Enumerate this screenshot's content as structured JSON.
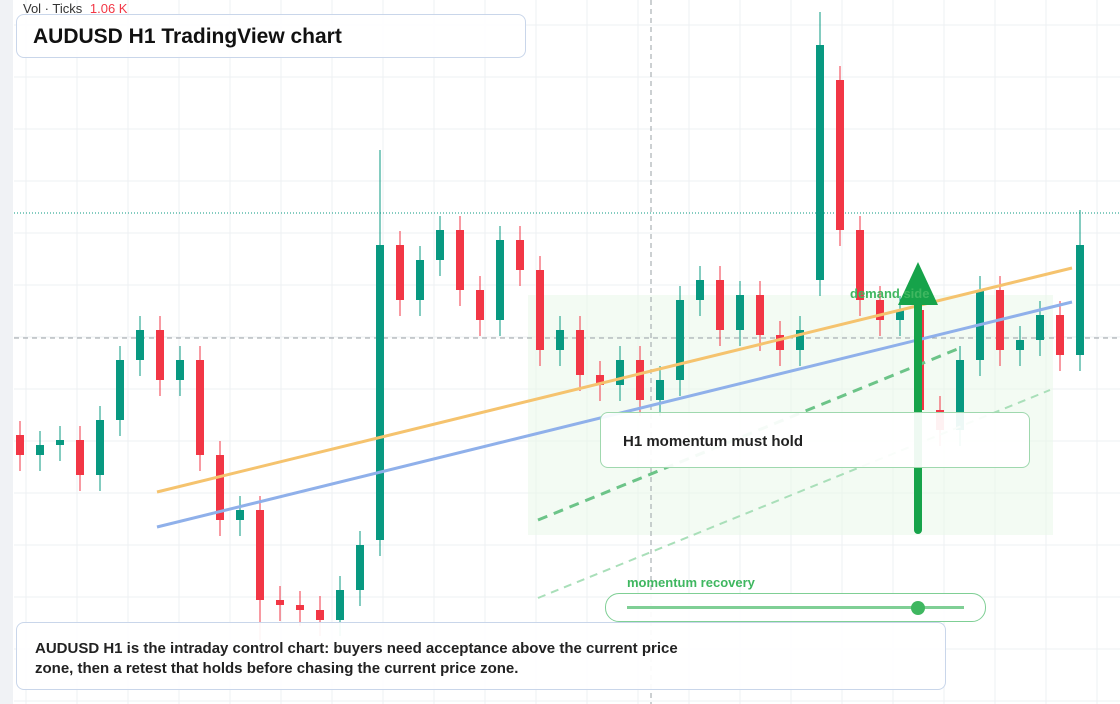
{
  "chart_data": {
    "type": "candlestick",
    "title": "AUDUSD H1 TradingView chart",
    "volume_label": "Vol · Ticks",
    "volume_value": "1.06 K",
    "ylim": [
      0,
      704
    ],
    "up_color": "#089981",
    "down_color": "#f23645",
    "open": [
      269,
      249,
      259,
      264,
      229,
      284,
      344,
      374,
      324,
      344,
      249,
      184,
      194,
      104,
      99,
      94,
      84,
      114,
      164,
      459,
      404,
      444,
      474,
      414,
      384,
      464,
      434,
      354,
      374,
      329,
      319,
      344,
      304,
      324,
      404,
      424,
      374,
      409,
      369,
      354,
      424,
      624,
      474,
      404,
      384,
      394,
      294,
      274,
      344,
      414,
      354,
      364,
      389,
      349
    ],
    "high": [
      283,
      273,
      278,
      278,
      298,
      358,
      388,
      388,
      358,
      358,
      263,
      208,
      208,
      118,
      113,
      108,
      128,
      173,
      554,
      473,
      458,
      488,
      488,
      428,
      478,
      478,
      448,
      388,
      388,
      343,
      358,
      358,
      338,
      418,
      438,
      438,
      423,
      423,
      383,
      388,
      692,
      638,
      488,
      418,
      408,
      408,
      308,
      358,
      428,
      428,
      378,
      403,
      403,
      494
    ],
    "low": [
      233,
      233,
      243,
      213,
      213,
      268,
      328,
      308,
      308,
      233,
      168,
      168,
      64,
      83,
      78,
      68,
      68,
      98,
      148,
      388,
      388,
      428,
      398,
      368,
      368,
      418,
      338,
      338,
      313,
      303,
      303,
      288,
      288,
      308,
      388,
      358,
      358,
      353,
      338,
      338,
      408,
      458,
      388,
      368,
      368,
      219,
      258,
      258,
      328,
      338,
      338,
      348,
      333,
      333
    ],
    "close": [
      249,
      259,
      264,
      229,
      284,
      344,
      374,
      324,
      344,
      249,
      184,
      194,
      104,
      99,
      94,
      84,
      114,
      159,
      459,
      404,
      444,
      474,
      414,
      384,
      464,
      434,
      354,
      374,
      329,
      319,
      344,
      304,
      324,
      404,
      424,
      374,
      409,
      369,
      354,
      374,
      659,
      474,
      404,
      384,
      394,
      294,
      274,
      344,
      414,
      354,
      364,
      389,
      349,
      459
    ],
    "annotations": {
      "zone_label": "demand side",
      "card": "H1 momentum must hold",
      "slider": "momentum recovery",
      "note": "AUDUSD H1 is the intraday control chart: buyers need acceptance above the current price zone, then a retest that holds before chasing the current price zone."
    }
  }
}
